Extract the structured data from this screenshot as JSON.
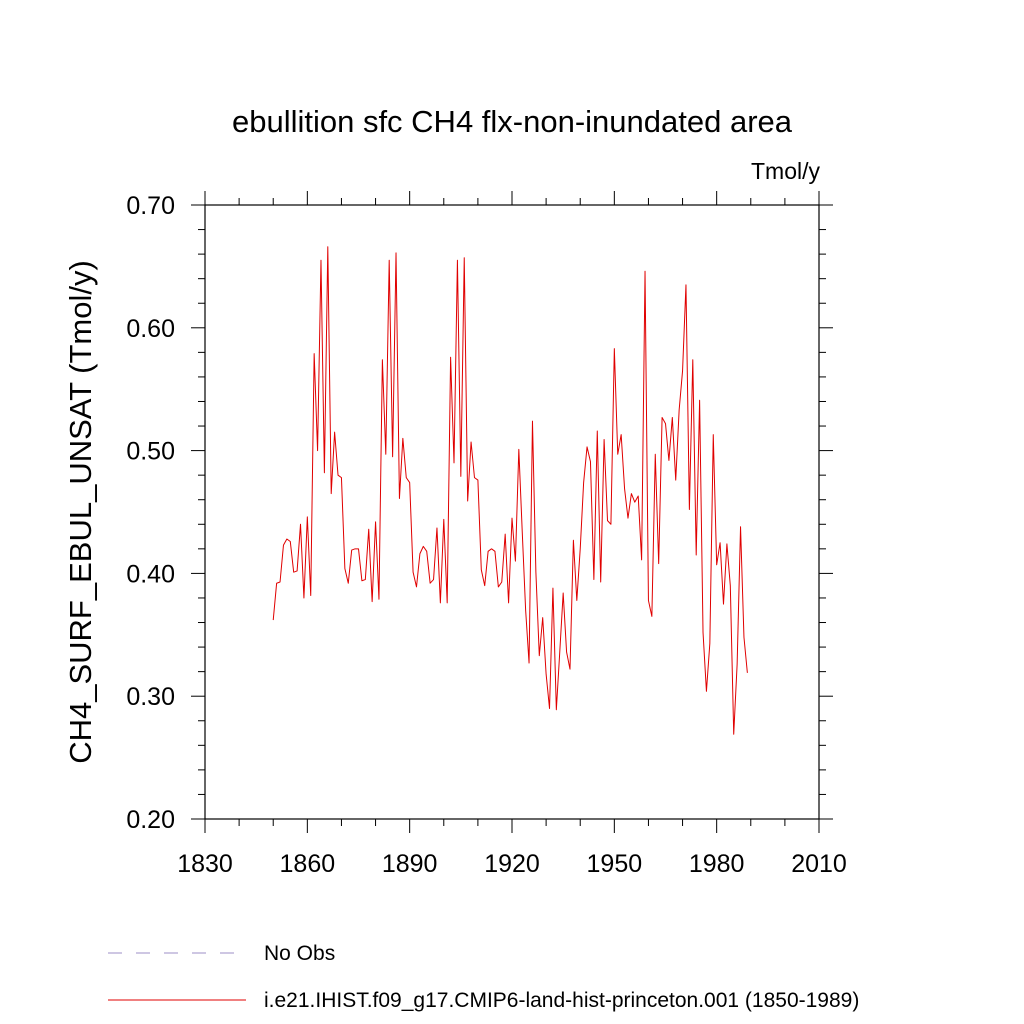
{
  "chart_data": {
    "type": "line",
    "title": "ebullition sfc CH4 flx-non-inundated area",
    "units": "Tmol/y",
    "ylabel": "CH4_SURF_EBUL_UNSAT  (Tmol/y)",
    "xlabel": "",
    "xlim": [
      1830,
      2010
    ],
    "ylim": [
      0.2,
      0.7
    ],
    "xticks": [
      1830,
      1860,
      1890,
      1920,
      1950,
      1980,
      2010
    ],
    "xtick_labels": [
      "1830",
      "1860",
      "1890",
      "1920",
      "1950",
      "1980",
      "2010"
    ],
    "yticks": [
      0.2,
      0.3,
      0.4,
      0.5,
      0.6,
      0.7
    ],
    "ytick_labels": [
      "0.20",
      "0.30",
      "0.40",
      "0.50",
      "0.60",
      "0.70"
    ],
    "grid": false,
    "legend_position": "bottom",
    "legend": [
      {
        "label": "No Obs",
        "color": "#9c8fc7",
        "style": "dashed"
      },
      {
        "label": "i.e21.IHIST.f09_g17.CMIP6-land-hist-princeton.001 (1850-1989)",
        "color": "#e00000",
        "style": "solid"
      }
    ],
    "series": [
      {
        "name": "i.e21.IHIST.f09_g17.CMIP6-land-hist-princeton.001 (1850-1989)",
        "color": "#e00000",
        "x_start": 1850,
        "x_step": 1,
        "values": [
          0.362,
          0.392,
          0.393,
          0.423,
          0.428,
          0.426,
          0.401,
          0.402,
          0.44,
          0.38,
          0.446,
          0.382,
          0.579,
          0.5,
          0.655,
          0.482,
          0.666,
          0.465,
          0.515,
          0.48,
          0.478,
          0.404,
          0.392,
          0.419,
          0.42,
          0.42,
          0.394,
          0.395,
          0.436,
          0.377,
          0.442,
          0.379,
          0.574,
          0.497,
          0.655,
          0.495,
          0.661,
          0.461,
          0.51,
          0.478,
          0.474,
          0.401,
          0.389,
          0.416,
          0.422,
          0.418,
          0.392,
          0.395,
          0.437,
          0.376,
          0.444,
          0.376,
          0.576,
          0.49,
          0.655,
          0.479,
          0.657,
          0.459,
          0.507,
          0.478,
          0.476,
          0.403,
          0.39,
          0.418,
          0.42,
          0.418,
          0.389,
          0.393,
          0.432,
          0.376,
          0.445,
          0.41,
          0.501,
          0.434,
          0.37,
          0.327,
          0.524,
          0.401,
          0.333,
          0.364,
          0.318,
          0.29,
          0.388,
          0.289,
          0.336,
          0.384,
          0.336,
          0.322,
          0.427,
          0.378,
          0.42,
          0.474,
          0.503,
          0.491,
          0.395,
          0.516,
          0.393,
          0.509,
          0.443,
          0.44,
          0.583,
          0.497,
          0.513,
          0.469,
          0.445,
          0.465,
          0.458,
          0.463,
          0.411,
          0.646,
          0.378,
          0.365,
          0.497,
          0.408,
          0.527,
          0.522,
          0.492,
          0.527,
          0.476,
          0.533,
          0.565,
          0.635,
          0.452,
          0.574,
          0.415,
          0.541,
          0.352,
          0.304,
          0.343,
          0.513,
          0.407,
          0.425,
          0.375,
          0.424,
          0.39,
          0.269,
          0.326,
          0.438,
          0.348,
          0.319
        ]
      }
    ]
  }
}
